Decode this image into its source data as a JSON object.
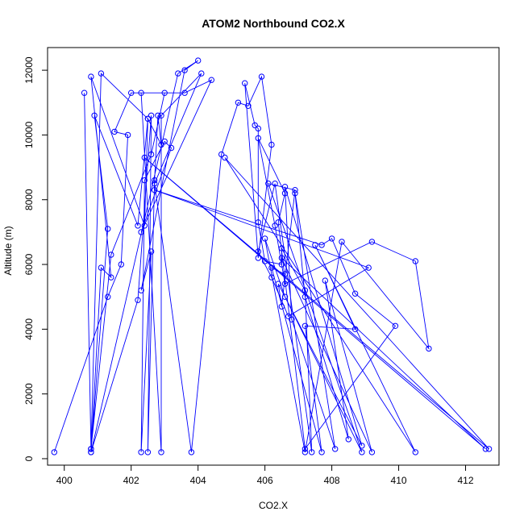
{
  "chart_data": {
    "type": "line",
    "title": "ATOM2 Northbound CO2.X",
    "xlabel": "CO2.X",
    "ylabel": "Altitude (m)",
    "xlim": [
      399.5,
      413.0
    ],
    "ylim": [
      -200,
      12700
    ],
    "xticks": [
      400,
      402,
      404,
      406,
      408,
      410,
      412
    ],
    "yticks": [
      0,
      2000,
      4000,
      6000,
      8000,
      10000,
      12000
    ],
    "line_color": "#0000ff",
    "marker": "open-circle",
    "series": [
      {
        "points": [
          [
            399.7,
            200
          ],
          [
            401.3,
            5000
          ],
          [
            401.7,
            6000
          ],
          [
            401.9,
            10000
          ],
          [
            401.5,
            10100
          ],
          [
            402.0,
            11300
          ],
          [
            403.0,
            11300
          ],
          [
            402.6,
            9400
          ],
          [
            401.4,
            6300
          ],
          [
            400.8,
            300
          ],
          [
            400.6,
            11300
          ],
          [
            400.8,
            300
          ],
          [
            401.1,
            11900
          ],
          [
            402.5,
            10500
          ],
          [
            402.2,
            7200
          ],
          [
            400.9,
            10600
          ],
          [
            401.3,
            7100
          ],
          [
            400.8,
            200
          ],
          [
            401.1,
            5900
          ],
          [
            401.4,
            5600
          ],
          [
            400.8,
            11800
          ],
          [
            402.4,
            7200
          ],
          [
            402.5,
            10500
          ],
          [
            402.9,
            9700
          ],
          [
            402.8,
            10600
          ],
          [
            402.7,
            8600
          ],
          [
            402.5,
            200
          ],
          [
            402.6,
            10600
          ],
          [
            402.2,
            4900
          ],
          [
            400.8,
            200
          ],
          [
            403.4,
            11900
          ],
          [
            404.0,
            12300
          ],
          [
            403.6,
            12000
          ],
          [
            402.3,
            5200
          ],
          [
            402.6,
            6400
          ],
          [
            402.3,
            200
          ],
          [
            402.4,
            8600
          ],
          [
            403.0,
            9800
          ],
          [
            403.2,
            9600
          ],
          [
            402.3,
            7000
          ],
          [
            404.4,
            11700
          ],
          [
            403.6,
            11300
          ],
          [
            402.3,
            11300
          ],
          [
            402.9,
            200
          ],
          [
            402.9,
            10600
          ],
          [
            404.1,
            11900
          ],
          [
            402.7,
            8500
          ],
          [
            403.8,
            200
          ],
          [
            404.7,
            9400
          ],
          [
            405.2,
            11000
          ],
          [
            405.5,
            10900
          ],
          [
            405.9,
            11800
          ],
          [
            406.2,
            9700
          ],
          [
            405.8,
            6200
          ],
          [
            405.4,
            11600
          ],
          [
            405.7,
            10300
          ],
          [
            405.8,
            10200
          ],
          [
            405.8,
            7300
          ],
          [
            406.0,
            6100
          ],
          [
            406.5,
            6000
          ],
          [
            406.5,
            6500
          ],
          [
            407.2,
            5200
          ],
          [
            407.4,
            200
          ],
          [
            406.3,
            8500
          ],
          [
            405.8,
            6400
          ],
          [
            406.2,
            5600
          ],
          [
            406.7,
            4400
          ],
          [
            409.1,
            5900
          ],
          [
            402.7,
            8300
          ],
          [
            407.7,
            6600
          ],
          [
            408.0,
            6800
          ],
          [
            408.7,
            5100
          ],
          [
            409.9,
            4100
          ],
          [
            407.2,
            300
          ],
          [
            406.4,
            7300
          ],
          [
            406.6,
            8200
          ],
          [
            405.8,
            9900
          ],
          [
            406.3,
            7200
          ],
          [
            406.6,
            5400
          ],
          [
            409.2,
            6700
          ],
          [
            410.5,
            6100
          ],
          [
            410.9,
            3400
          ],
          [
            408.3,
            6700
          ],
          [
            407.2,
            200
          ],
          [
            406.0,
            6800
          ],
          [
            406.6,
            5000
          ],
          [
            408.9,
            200
          ],
          [
            406.1,
            8500
          ],
          [
            406.9,
            8300
          ],
          [
            406.5,
            4700
          ],
          [
            406.4,
            5400
          ],
          [
            408.9,
            400
          ],
          [
            406.6,
            8400
          ],
          [
            406.8,
            4300
          ],
          [
            408.1,
            300
          ],
          [
            406.9,
            8200
          ],
          [
            407.2,
            5000
          ],
          [
            408.5,
            600
          ],
          [
            407.8,
            5500
          ],
          [
            409.2,
            200
          ],
          [
            406.5,
            6200
          ],
          [
            412.6,
            300
          ],
          [
            402.4,
            9300
          ],
          [
            412.7,
            300
          ],
          [
            404.8,
            9300
          ],
          [
            410.5,
            200
          ],
          [
            407.5,
            6600
          ],
          [
            408.7,
            4000
          ],
          [
            407.2,
            4100
          ],
          [
            407.7,
            200
          ],
          [
            406.2,
            5900
          ],
          [
            406.6,
            5700
          ]
        ]
      }
    ]
  }
}
